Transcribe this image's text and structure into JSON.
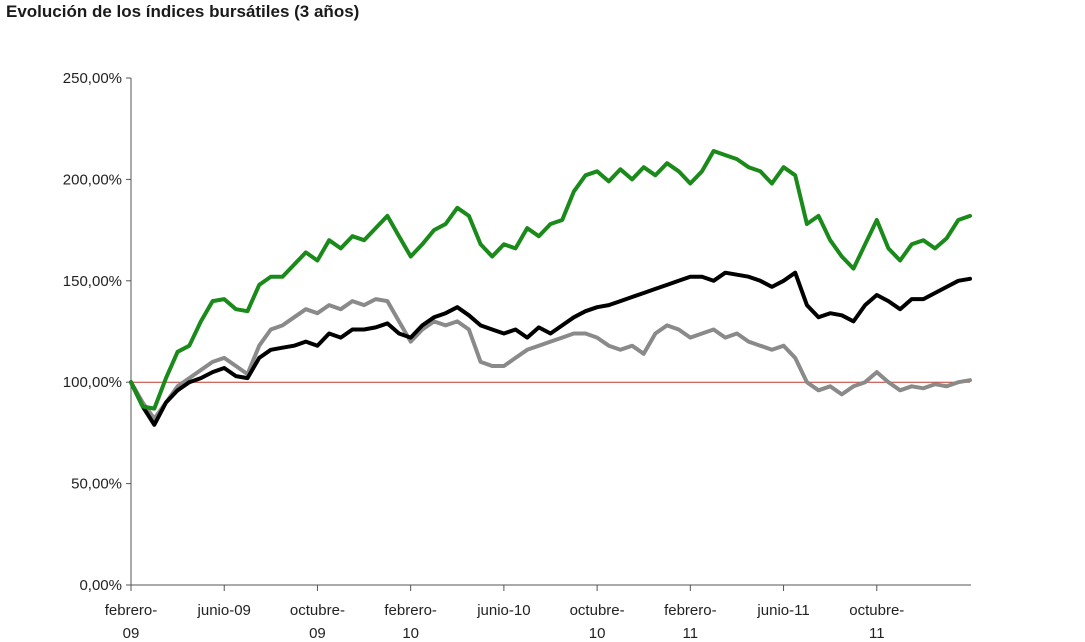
{
  "chart_data": {
    "type": "line",
    "title": "Evolución de los índices bursátiles (3 años)",
    "xlabel": "",
    "ylabel": "",
    "ylim": [
      0,
      250
    ],
    "yticks": [
      0,
      50,
      100,
      150,
      200,
      250
    ],
    "ytick_labels": [
      "0,00%",
      "50,00%",
      "100,00%",
      "150,00%",
      "200,00%",
      "250,00%"
    ],
    "xlim": [
      0,
      36
    ],
    "xticks": [
      0,
      4,
      8,
      12,
      16,
      20,
      24,
      28,
      32
    ],
    "xtick_labels": [
      [
        "febrero-",
        "09"
      ],
      [
        "junio-09",
        ""
      ],
      [
        "octubre-",
        "09"
      ],
      [
        "febrero-",
        "10"
      ],
      [
        "junio-10",
        ""
      ],
      [
        "octubre-",
        "10"
      ],
      [
        "febrero-",
        "11"
      ],
      [
        "junio-11",
        ""
      ],
      [
        "octubre-",
        "11"
      ]
    ],
    "reference_line": {
      "value": 100,
      "color": "#c0392b"
    },
    "grid": false,
    "legend": "none",
    "series": [
      {
        "color": "#1a8a1a",
        "x": [
          0,
          0.5,
          1,
          1.5,
          2,
          2.5,
          3,
          3.5,
          4,
          4.5,
          5,
          5.5,
          6,
          6.5,
          7,
          7.5,
          8,
          8.5,
          9,
          9.5,
          10,
          10.5,
          11,
          11.5,
          12,
          12.5,
          13,
          13.5,
          14,
          14.5,
          15,
          15.5,
          16,
          16.5,
          17,
          17.5,
          18,
          18.5,
          19,
          19.5,
          20,
          20.5,
          21,
          21.5,
          22,
          22.5,
          23,
          23.5,
          24,
          24.5,
          25,
          25.5,
          26,
          26.5,
          27,
          27.5,
          28,
          28.5,
          29,
          29.5,
          30,
          30.5,
          31,
          31.5,
          32,
          32.5,
          33,
          33.5,
          34,
          34.5,
          35,
          35.5,
          36
        ],
        "y": [
          100,
          88,
          87,
          102,
          115,
          118,
          130,
          140,
          141,
          136,
          135,
          148,
          152,
          152,
          158,
          164,
          160,
          170,
          166,
          172,
          170,
          176,
          182,
          172,
          162,
          168,
          175,
          178,
          186,
          182,
          168,
          162,
          168,
          166,
          176,
          172,
          178,
          180,
          194,
          202,
          204,
          199,
          205,
          200,
          206,
          202,
          208,
          204,
          198,
          204,
          214,
          212,
          210,
          206,
          204,
          198,
          206,
          202,
          178,
          182,
          170,
          162,
          156,
          168,
          180,
          166,
          160,
          168,
          170,
          166,
          171,
          180,
          182
        ]
      },
      {
        "color": "#000000",
        "x": [
          0,
          0.5,
          1,
          1.5,
          2,
          2.5,
          3,
          3.5,
          4,
          4.5,
          5,
          5.5,
          6,
          6.5,
          7,
          7.5,
          8,
          8.5,
          9,
          9.5,
          10,
          10.5,
          11,
          11.5,
          12,
          12.5,
          13,
          13.5,
          14,
          14.5,
          15,
          15.5,
          16,
          16.5,
          17,
          17.5,
          18,
          18.5,
          19,
          19.5,
          20,
          20.5,
          21,
          21.5,
          22,
          22.5,
          23,
          23.5,
          24,
          24.5,
          25,
          25.5,
          26,
          26.5,
          27,
          27.5,
          28,
          28.5,
          29,
          29.5,
          30,
          30.5,
          31,
          31.5,
          32,
          32.5,
          33,
          33.5,
          34,
          34.5,
          35,
          35.5,
          36
        ],
        "y": [
          100,
          88,
          79,
          90,
          96,
          100,
          102,
          105,
          107,
          103,
          102,
          112,
          116,
          117,
          118,
          120,
          118,
          124,
          122,
          126,
          126,
          127,
          129,
          124,
          122,
          128,
          132,
          134,
          137,
          133,
          128,
          126,
          124,
          126,
          122,
          127,
          124,
          128,
          132,
          135,
          137,
          138,
          140,
          142,
          144,
          146,
          148,
          150,
          152,
          152,
          150,
          154,
          153,
          152,
          150,
          147,
          150,
          154,
          138,
          132,
          134,
          133,
          130,
          138,
          143,
          140,
          136,
          141,
          141,
          144,
          147,
          150,
          151
        ]
      },
      {
        "color": "#8a8a8a",
        "x": [
          0,
          0.5,
          1,
          1.5,
          2,
          2.5,
          3,
          3.5,
          4,
          4.5,
          5,
          5.5,
          6,
          6.5,
          7,
          7.5,
          8,
          8.5,
          9,
          9.5,
          10,
          10.5,
          11,
          11.5,
          12,
          12.5,
          13,
          13.5,
          14,
          14.5,
          15,
          15.5,
          16,
          16.5,
          17,
          17.5,
          18,
          18.5,
          19,
          19.5,
          20,
          20.5,
          21,
          21.5,
          22,
          22.5,
          23,
          23.5,
          24,
          24.5,
          25,
          25.5,
          26,
          26.5,
          27,
          27.5,
          28,
          28.5,
          29,
          29.5,
          30,
          30.5,
          31,
          31.5,
          32,
          32.5,
          33,
          33.5,
          34,
          34.5,
          35,
          35.5,
          36
        ],
        "y": [
          100,
          90,
          82,
          90,
          98,
          102,
          106,
          110,
          112,
          108,
          104,
          118,
          126,
          128,
          132,
          136,
          134,
          138,
          136,
          140,
          138,
          141,
          140,
          130,
          120,
          126,
          130,
          128,
          130,
          126,
          110,
          108,
          108,
          112,
          116,
          118,
          120,
          122,
          124,
          124,
          122,
          118,
          116,
          118,
          114,
          124,
          128,
          126,
          122,
          124,
          126,
          122,
          124,
          120,
          118,
          116,
          118,
          112,
          100,
          96,
          98,
          94,
          98,
          100,
          105,
          100,
          96,
          98,
          97,
          99,
          98,
          100,
          101
        ]
      }
    ]
  }
}
